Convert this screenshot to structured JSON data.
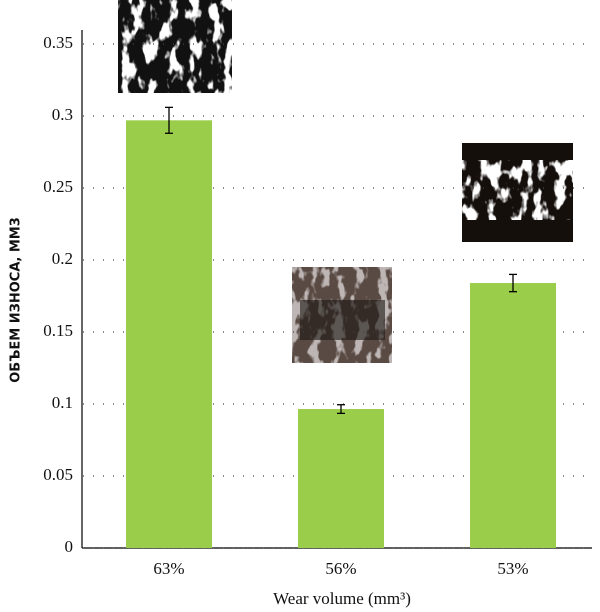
{
  "chart_data": {
    "type": "bar",
    "x_label": "Wear volume (mm³)",
    "y_label": "ОБЪЕМ ИЗНОСА, ММ3",
    "categories": [
      "63%",
      "56%",
      "53%"
    ],
    "values": [
      0.297,
      0.0965,
      0.184
    ],
    "errors": [
      0.009,
      0.003,
      0.006
    ],
    "color": "#9acd4a",
    "ylim": [
      0,
      0.35
    ],
    "yticks": [
      0,
      0.05,
      0.1,
      0.15,
      0.2,
      0.25,
      0.3,
      0.35
    ],
    "grid": true
  }
}
